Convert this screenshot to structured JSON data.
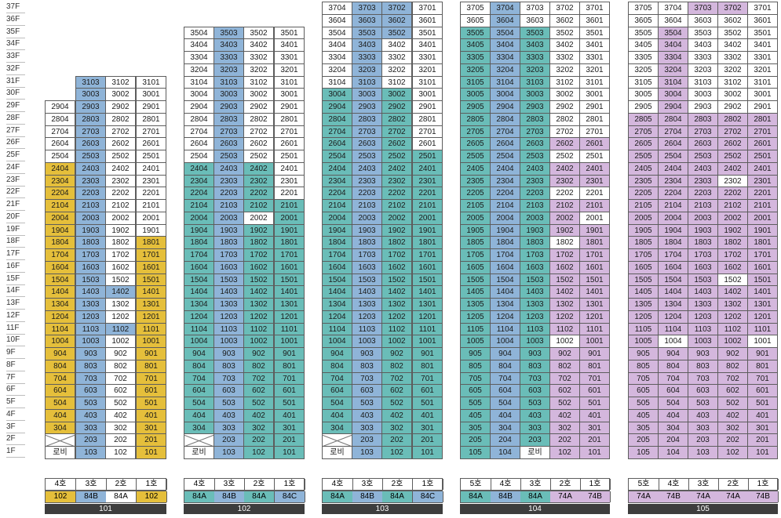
{
  "floors": [
    "37F",
    "36F",
    "35F",
    "34F",
    "33F",
    "32F",
    "31F",
    "30F",
    "29F",
    "28F",
    "27F",
    "26F",
    "25F",
    "24F",
    "23F",
    "22F",
    "21F",
    "20F",
    "19F",
    "18F",
    "17F",
    "16F",
    "15F",
    "14F",
    "13F",
    "12F",
    "11F",
    "10F",
    "9F",
    "8F",
    "7F",
    "6F",
    "5F",
    "4F",
    "3F",
    "2F",
    "1F"
  ],
  "colors": {
    "yellow": "#e5bf3b",
    "blue": "#8fb4d8",
    "teal": "#6abdb8",
    "purple": "#d4b7dd",
    "white": "#ffffff"
  },
  "lobby_label": "로비",
  "buildings": [
    {
      "name": "101",
      "top_floor": 31,
      "lines": [
        4,
        3,
        2,
        1
      ],
      "line_labels": [
        "4호",
        "3호",
        "2호",
        "1호"
      ],
      "types": [
        "102",
        "84B",
        "84A",
        "102"
      ],
      "col_colors": [
        "yellow",
        "blue",
        "white",
        "white"
      ],
      "type_colors": [
        "yellow",
        "blue",
        "white",
        "yellow"
      ],
      "cells": []
    },
    {
      "name": "102",
      "top_floor": 35,
      "lines": [
        4,
        3,
        2,
        1
      ],
      "line_labels": [
        "4호",
        "3호",
        "2호",
        "1호"
      ],
      "types": [
        "84A",
        "84B",
        "84A",
        "84C"
      ],
      "col_colors": [
        "white",
        "blue",
        "white",
        "blue"
      ],
      "type_colors": [
        "teal",
        "blue",
        "teal",
        "blue"
      ],
      "cells": []
    },
    {
      "name": "103",
      "top_floor": 37,
      "lines": [
        4,
        3,
        2,
        1
      ],
      "line_labels": [
        "4호",
        "3호",
        "2호",
        "1호"
      ],
      "types": [
        "84A",
        "84B",
        "84A",
        "84C"
      ],
      "col_colors": [
        "white",
        "blue",
        "white",
        "blue"
      ],
      "type_colors": [
        "teal",
        "blue",
        "teal",
        "blue"
      ],
      "cells": []
    },
    {
      "name": "104",
      "top_floor": 37,
      "lines": [
        5,
        4,
        3,
        2,
        1
      ],
      "line_labels": [
        "5호",
        "4호",
        "3호",
        "2호",
        "1호"
      ],
      "types": [
        "84A",
        "84B",
        "84A",
        "74A",
        "74B"
      ],
      "col_colors": [
        "teal",
        "blue",
        "teal",
        "purple",
        "purple"
      ],
      "type_colors": [
        "teal",
        "blue",
        "teal",
        "purple",
        "purple"
      ],
      "cells": []
    },
    {
      "name": "105",
      "top_floor": 37,
      "lines": [
        5,
        4,
        3,
        2,
        1
      ],
      "line_labels": [
        "5호",
        "4호",
        "3호",
        "2호",
        "1호"
      ],
      "types": [
        "74A",
        "74B",
        "74A",
        "74A",
        "74B"
      ],
      "col_colors": [
        "purple",
        "purple",
        "purple",
        "purple",
        "purple"
      ],
      "type_colors": [
        "purple",
        "purple",
        "purple",
        "purple",
        "purple"
      ],
      "cells": []
    }
  ]
}
